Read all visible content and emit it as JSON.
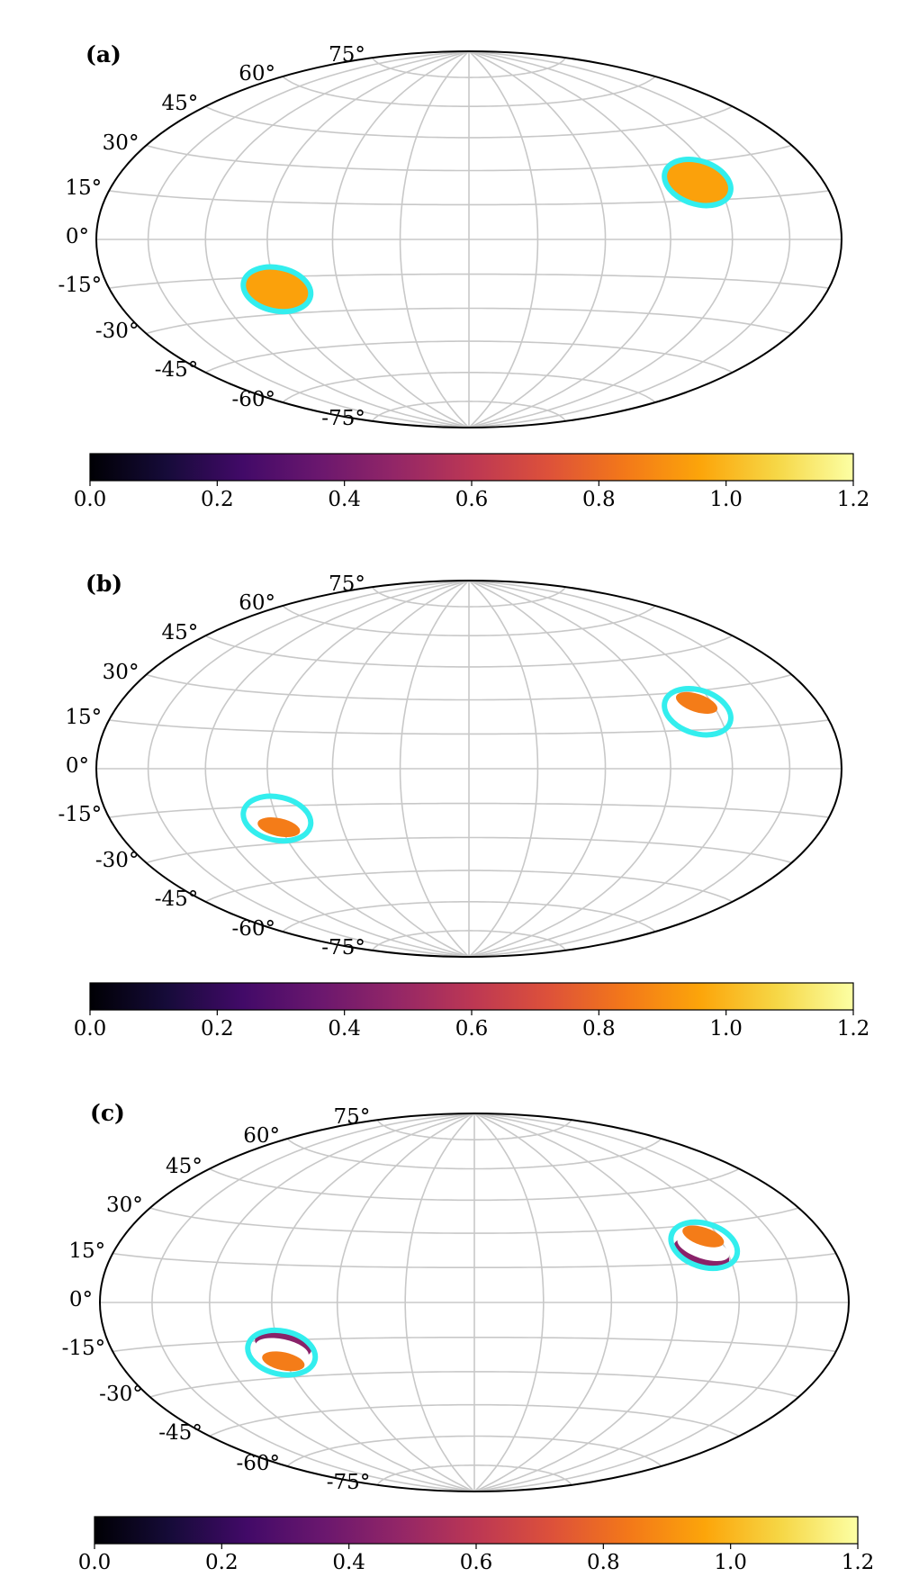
{
  "chart_data": [
    {
      "type": "heatmap",
      "panel_label": "(a)",
      "projection": "Aitoff/Hammer equal-area (full sky)",
      "latitude_tick_labels": [
        "75°",
        "60°",
        "45°",
        "30°",
        "15°",
        "0°",
        "-15°",
        "-30°",
        "-45°",
        "-60°",
        "-75°"
      ],
      "grid": true,
      "colorbar": {
        "cmap": "inferno",
        "range": [
          0.0,
          1.2
        ],
        "tick_labels": [
          "0.0",
          "0.2",
          "0.4",
          "0.6",
          "0.8",
          "1.0",
          "1.2"
        ]
      },
      "regions": [
        {
          "lon": 110,
          "lat": 22,
          "value": 0.95,
          "coverage": "full",
          "outline": "#33eeee"
        },
        {
          "lon": -90,
          "lat": -20,
          "value": 0.95,
          "coverage": "full",
          "outline": "#33eeee"
        }
      ]
    },
    {
      "type": "heatmap",
      "panel_label": "(b)",
      "projection": "Aitoff/Hammer equal-area (full sky)",
      "latitude_tick_labels": [
        "75°",
        "60°",
        "45°",
        "30°",
        "15°",
        "0°",
        "-15°",
        "-30°",
        "-45°",
        "-60°",
        "-75°"
      ],
      "grid": true,
      "colorbar": {
        "cmap": "inferno",
        "range": [
          0.0,
          1.2
        ],
        "tick_labels": [
          "0.0",
          "0.2",
          "0.4",
          "0.6",
          "0.8",
          "1.0",
          "1.2"
        ]
      },
      "regions": [
        {
          "lon": 110,
          "lat": 22,
          "value": 0.85,
          "coverage": "upper-inner",
          "outline": "#33eeee"
        },
        {
          "lon": -90,
          "lat": -20,
          "value": 0.85,
          "coverage": "lower-inner",
          "outline": "#33eeee"
        }
      ]
    },
    {
      "type": "heatmap",
      "panel_label": "(c)",
      "projection": "Aitoff/Hammer equal-area (full sky)",
      "latitude_tick_labels": [
        "75°",
        "60°",
        "45°",
        "30°",
        "15°",
        "0°",
        "-15°",
        "-30°",
        "-45°",
        "-60°",
        "-75°"
      ],
      "grid": true,
      "colorbar": {
        "cmap": "inferno",
        "range": [
          0.0,
          1.2
        ],
        "tick_labels": [
          "0.0",
          "0.2",
          "0.4",
          "0.6",
          "0.8",
          "1.0",
          "1.2"
        ]
      },
      "regions": [
        {
          "lon": 110,
          "lat": 22,
          "value": 0.85,
          "coverage": "upper-inner",
          "secondary_value": 0.45,
          "outline": "#33eeee"
        },
        {
          "lon": -90,
          "lat": -20,
          "value": 0.85,
          "coverage": "lower-inner",
          "secondary_value": 0.45,
          "outline": "#33eeee"
        }
      ]
    }
  ]
}
